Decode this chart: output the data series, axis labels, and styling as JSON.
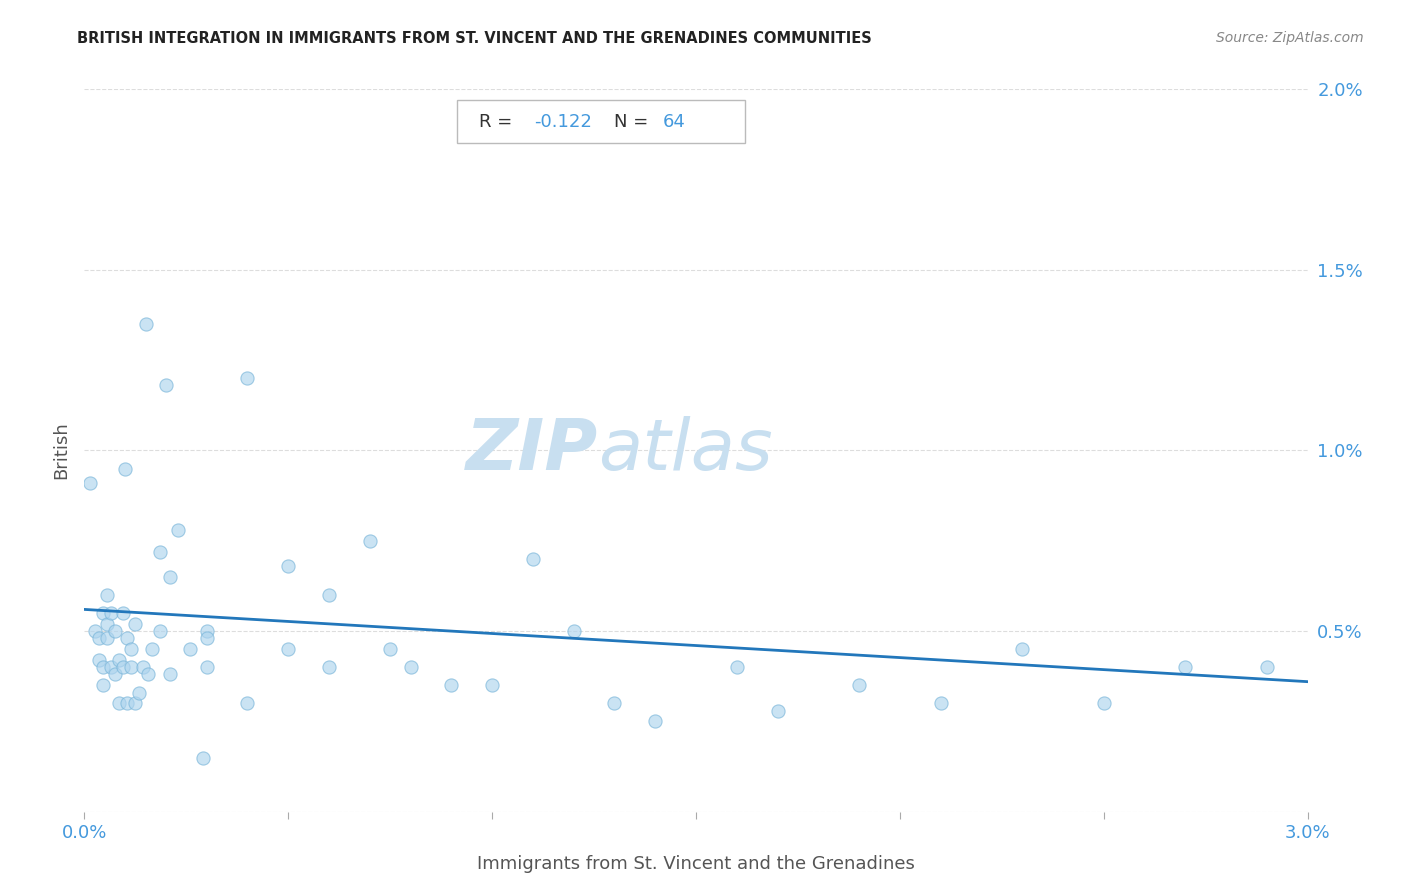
{
  "title": "BRITISH INTEGRATION IN IMMIGRANTS FROM ST. VINCENT AND THE GRENADINES COMMUNITIES",
  "source": "Source: ZipAtlas.com",
  "xlabel": "Immigrants from St. Vincent and the Grenadines",
  "ylabel": "British",
  "R": -0.122,
  "N": 64,
  "xlim": [
    0.0,
    0.03
  ],
  "ylim": [
    0.0,
    0.02
  ],
  "xtick_positions": [
    0.0,
    0.005,
    0.01,
    0.015,
    0.02,
    0.025,
    0.03
  ],
  "xtick_labels": [
    "0.0%",
    "",
    "",
    "",
    "",
    "",
    "3.0%"
  ],
  "ytick_positions": [
    0.0,
    0.005,
    0.01,
    0.015,
    0.02
  ],
  "right_ytick_labels": [
    "",
    "0.5%",
    "1.0%",
    "1.5%",
    "2.0%"
  ],
  "scatter_color": "#aed4ee",
  "scatter_edgecolor": "#75b3d8",
  "scatter_alpha": 0.65,
  "scatter_size": 90,
  "line_color": "#2277bb",
  "line_width": 2.0,
  "regression_x0": 0.0,
  "regression_y0": 0.0056,
  "regression_x1": 0.03,
  "regression_y1": 0.0036,
  "watermark_color": "#c8dff0",
  "background_color": "#ffffff",
  "tick_color": "#4499dd",
  "label_color": "#555555",
  "title_color": "#222222",
  "source_color": "#888888",
  "grid_color": "#dddddd",
  "ann_box_edge": "#bbbbbb",
  "scatter_x": [
    0.00015,
    0.00025,
    0.00035,
    0.00035,
    0.00045,
    0.00045,
    0.00045,
    0.00055,
    0.00055,
    0.00055,
    0.00065,
    0.00065,
    0.00075,
    0.00075,
    0.00085,
    0.00085,
    0.00095,
    0.00095,
    0.00105,
    0.00105,
    0.00115,
    0.00115,
    0.00125,
    0.00125,
    0.00135,
    0.00145,
    0.00155,
    0.00165,
    0.00185,
    0.00185,
    0.0021,
    0.0021,
    0.0023,
    0.0026,
    0.0029,
    0.003,
    0.003,
    0.004,
    0.004,
    0.005,
    0.005,
    0.006,
    0.006,
    0.007,
    0.0075,
    0.008,
    0.009,
    0.01,
    0.011,
    0.012,
    0.013,
    0.014,
    0.016,
    0.017,
    0.019,
    0.021,
    0.023,
    0.025,
    0.027,
    0.029,
    0.001,
    0.002,
    0.0015,
    0.003
  ],
  "scatter_y": [
    0.0091,
    0.005,
    0.0042,
    0.0048,
    0.0055,
    0.004,
    0.0035,
    0.006,
    0.0052,
    0.0048,
    0.0055,
    0.004,
    0.0038,
    0.005,
    0.003,
    0.0042,
    0.0055,
    0.004,
    0.0048,
    0.003,
    0.0045,
    0.004,
    0.003,
    0.0052,
    0.0033,
    0.004,
    0.0038,
    0.0045,
    0.0072,
    0.005,
    0.0065,
    0.0038,
    0.0078,
    0.0045,
    0.0015,
    0.005,
    0.004,
    0.012,
    0.003,
    0.0045,
    0.0068,
    0.004,
    0.006,
    0.0075,
    0.0045,
    0.004,
    0.0035,
    0.0035,
    0.007,
    0.005,
    0.003,
    0.0025,
    0.004,
    0.0028,
    0.0035,
    0.003,
    0.0045,
    0.003,
    0.004,
    0.004,
    0.0095,
    0.0118,
    0.0135,
    0.0048
  ]
}
